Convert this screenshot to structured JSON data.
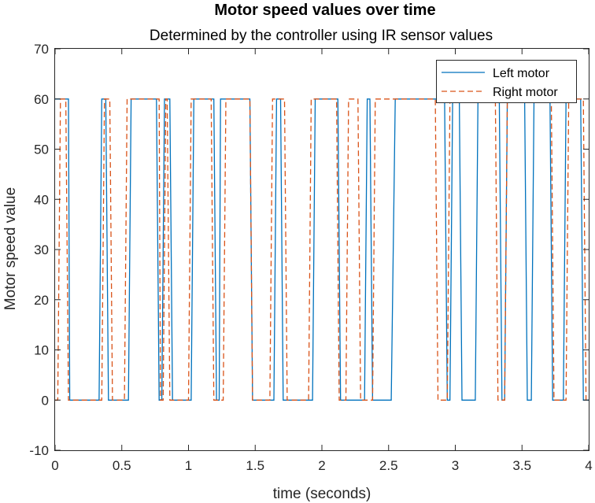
{
  "chart_data": {
    "type": "line",
    "title": "Motor speed values over time",
    "subtitle": "Determined by the controller using IR sensor values",
    "xlabel": "time (seconds)",
    "ylabel": "Motor speed value",
    "xlim": [
      0,
      4
    ],
    "ylim": [
      -10,
      70
    ],
    "xticks": [
      "0",
      "0.5",
      "1",
      "1.5",
      "2",
      "2.5",
      "3",
      "3.5",
      "4"
    ],
    "yticks": [
      "-10",
      "0",
      "10",
      "20",
      "30",
      "40",
      "50",
      "60",
      "70"
    ],
    "grid": false,
    "legend_position": "top-right",
    "series": [
      {
        "name": "Left motor",
        "color": "#0072BD",
        "style": "solid",
        "x": [
          0,
          0.1,
          0.11,
          0.33,
          0.35,
          0.38,
          0.4,
          0.55,
          0.57,
          0.76,
          0.78,
          0.8,
          0.82,
          0.86,
          0.88,
          1.02,
          1.04,
          1.19,
          1.21,
          1.23,
          1.24,
          1.46,
          1.48,
          1.64,
          1.66,
          1.69,
          1.71,
          1.93,
          1.95,
          2.12,
          2.14,
          2.32,
          2.34,
          2.36,
          2.38,
          2.52,
          2.55,
          2.92,
          2.94,
          2.96,
          2.98,
          3.03,
          3.05,
          3.15,
          3.17,
          3.33,
          3.35,
          3.37,
          3.39,
          3.52,
          3.54,
          3.57,
          3.59,
          3.71,
          3.73,
          3.81,
          3.83,
          3.94,
          3.96,
          4.0
        ],
        "y": [
          60,
          60,
          0,
          0,
          60,
          60,
          0,
          0,
          60,
          60,
          0,
          0,
          60,
          60,
          0,
          0,
          60,
          60,
          0,
          0,
          60,
          60,
          0,
          0,
          60,
          60,
          0,
          0,
          60,
          60,
          0,
          0,
          60,
          60,
          0,
          0,
          60,
          60,
          0,
          0,
          60,
          60,
          0,
          0,
          60,
          60,
          0,
          0,
          60,
          60,
          0,
          0,
          60,
          60,
          0,
          0,
          60,
          60,
          0,
          0
        ]
      },
      {
        "name": "Right motor",
        "color": "#D95319",
        "style": "dashed",
        "x": [
          0,
          0.02,
          0.04,
          0.08,
          0.1,
          0.35,
          0.37,
          0.41,
          0.43,
          0.52,
          0.54,
          0.78,
          0.79,
          0.81,
          0.83,
          0.84,
          0.86,
          1.0,
          1.02,
          1.17,
          1.19,
          1.26,
          1.28,
          1.46,
          1.48,
          1.61,
          1.63,
          1.72,
          1.74,
          1.9,
          1.92,
          2.11,
          2.13,
          2.18,
          2.2,
          2.27,
          2.29,
          2.38,
          2.4,
          2.85,
          2.87,
          2.94,
          2.96,
          3.3,
          3.32,
          3.37,
          3.39,
          3.72,
          3.74,
          3.83,
          3.85,
          3.96,
          3.98,
          4.0
        ],
        "y": [
          0,
          0,
          60,
          60,
          0,
          0,
          60,
          60,
          0,
          0,
          60,
          60,
          0,
          0,
          60,
          60,
          0,
          0,
          60,
          60,
          0,
          0,
          60,
          60,
          0,
          0,
          60,
          60,
          0,
          0,
          60,
          60,
          0,
          0,
          60,
          60,
          0,
          0,
          60,
          60,
          0,
          0,
          60,
          60,
          0,
          0,
          60,
          60,
          0,
          0,
          60,
          60,
          0,
          0
        ]
      }
    ]
  }
}
